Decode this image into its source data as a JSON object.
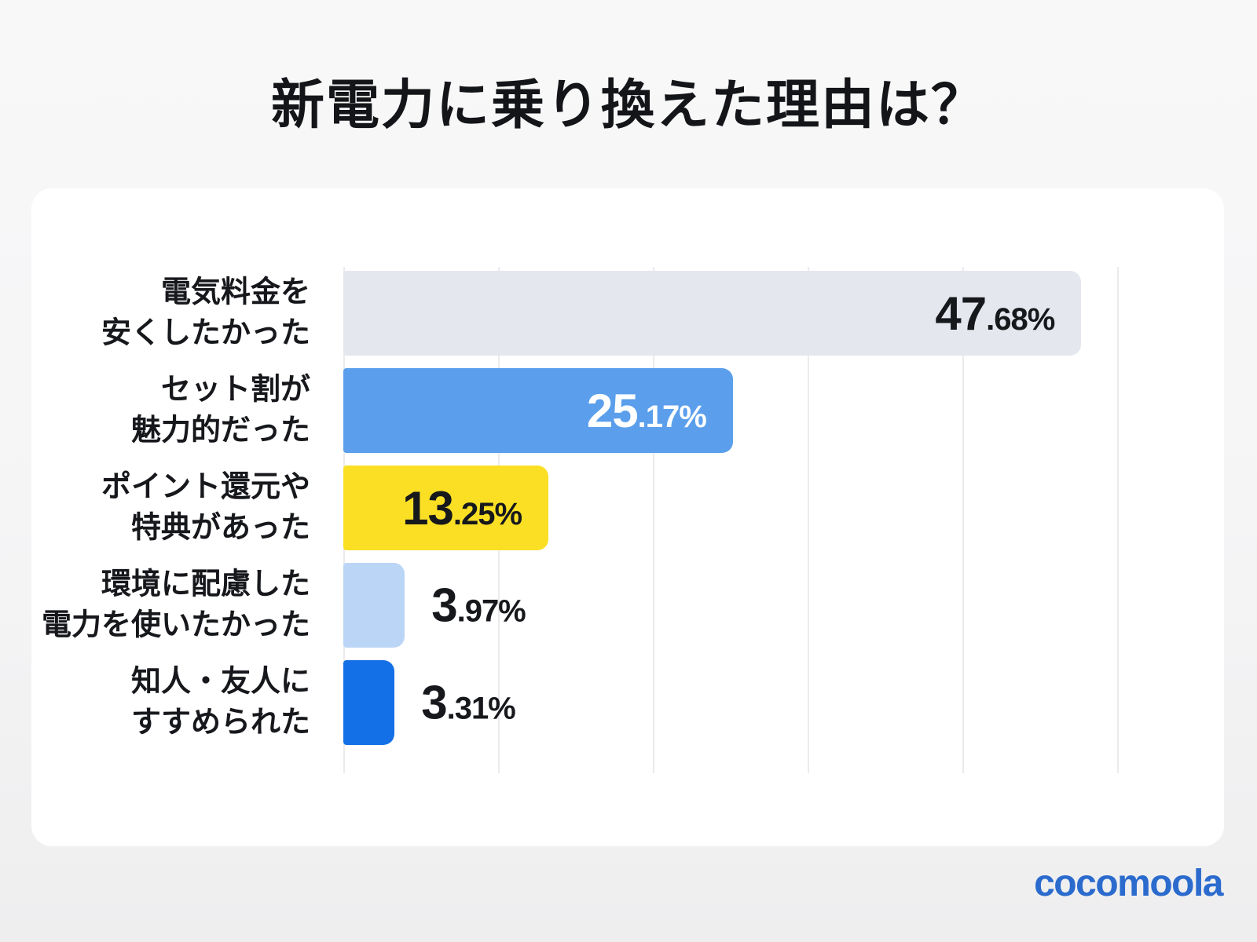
{
  "title": "新電力に乗り換えた理由は？",
  "logo": {
    "text": "cocomoola",
    "color": "#2b6bcd"
  },
  "chart_data": {
    "type": "bar",
    "orientation": "horizontal",
    "title": "新電力に乗り換えた理由は？",
    "xlabel": "",
    "ylabel": "",
    "xlim": [
      0,
      50
    ],
    "gridline_step": 10,
    "grid": true,
    "legend": false,
    "categories": [
      [
        "電気料金を",
        "安くしたかった"
      ],
      [
        "セット割が",
        "魅力的だった"
      ],
      [
        "ポイント還元や",
        "特典があった"
      ],
      [
        "環境に配慮した",
        "電力を使いたかった"
      ],
      [
        "知人・友人に",
        "すすめられた"
      ]
    ],
    "values": [
      47.68,
      25.17,
      13.25,
      3.97,
      3.31
    ],
    "value_labels": [
      "47.68%",
      "25.17%",
      "13.25%",
      "3.97%",
      "3.31%"
    ],
    "bar_colors": [
      "#e4e7ed",
      "#5b9fec",
      "#fadf25",
      "#bbd5f6",
      "#1470e6"
    ],
    "value_text_colors": [
      "#16181c",
      "#ffffff",
      "#16181c",
      "#16181c",
      "#16181c"
    ],
    "value_label_inside": [
      true,
      true,
      true,
      false,
      false
    ],
    "gridline_color": "#ebebee",
    "card_background": "#ffffff",
    "page_background": "#f4f4f5"
  }
}
